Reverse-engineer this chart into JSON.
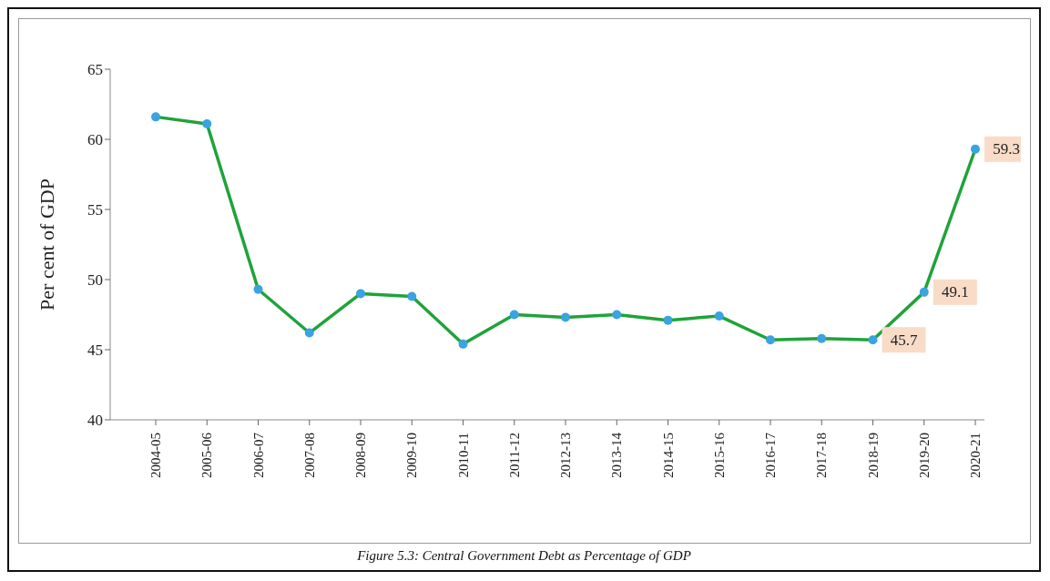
{
  "chart_data": {
    "type": "line",
    "title": "Figure 5.3: Central Government Debt as Percentage of GDP",
    "ylabel": "Per cent of GDP",
    "categories": [
      "2004-05",
      "2005-06",
      "2006-07",
      "2007-08",
      "2008-09",
      "2009-10",
      "2010-11",
      "2011-12",
      "2012-13",
      "2013-14",
      "2014-15",
      "2015-16",
      "2016-17",
      "2017-18",
      "2018-19",
      "2019-20",
      "2020-21"
    ],
    "series": [
      {
        "color": "#1fa33a",
        "values": [
          61.6,
          61.1,
          49.3,
          46.2,
          49.0,
          48.8,
          45.4,
          47.5,
          47.3,
          47.5,
          47.1,
          47.4,
          45.7,
          45.8,
          45.7,
          49.1,
          59.3
        ],
        "value_labels": [
          null,
          null,
          null,
          null,
          null,
          null,
          null,
          null,
          null,
          null,
          null,
          null,
          null,
          null,
          "45.7",
          "49.1",
          "59.3"
        ]
      }
    ],
    "ylim": [
      40,
      65
    ],
    "yticks": [
      40,
      45,
      50,
      55,
      60,
      65
    ],
    "grid": false,
    "legend": false,
    "marker": "circle",
    "line_style": "solid"
  }
}
